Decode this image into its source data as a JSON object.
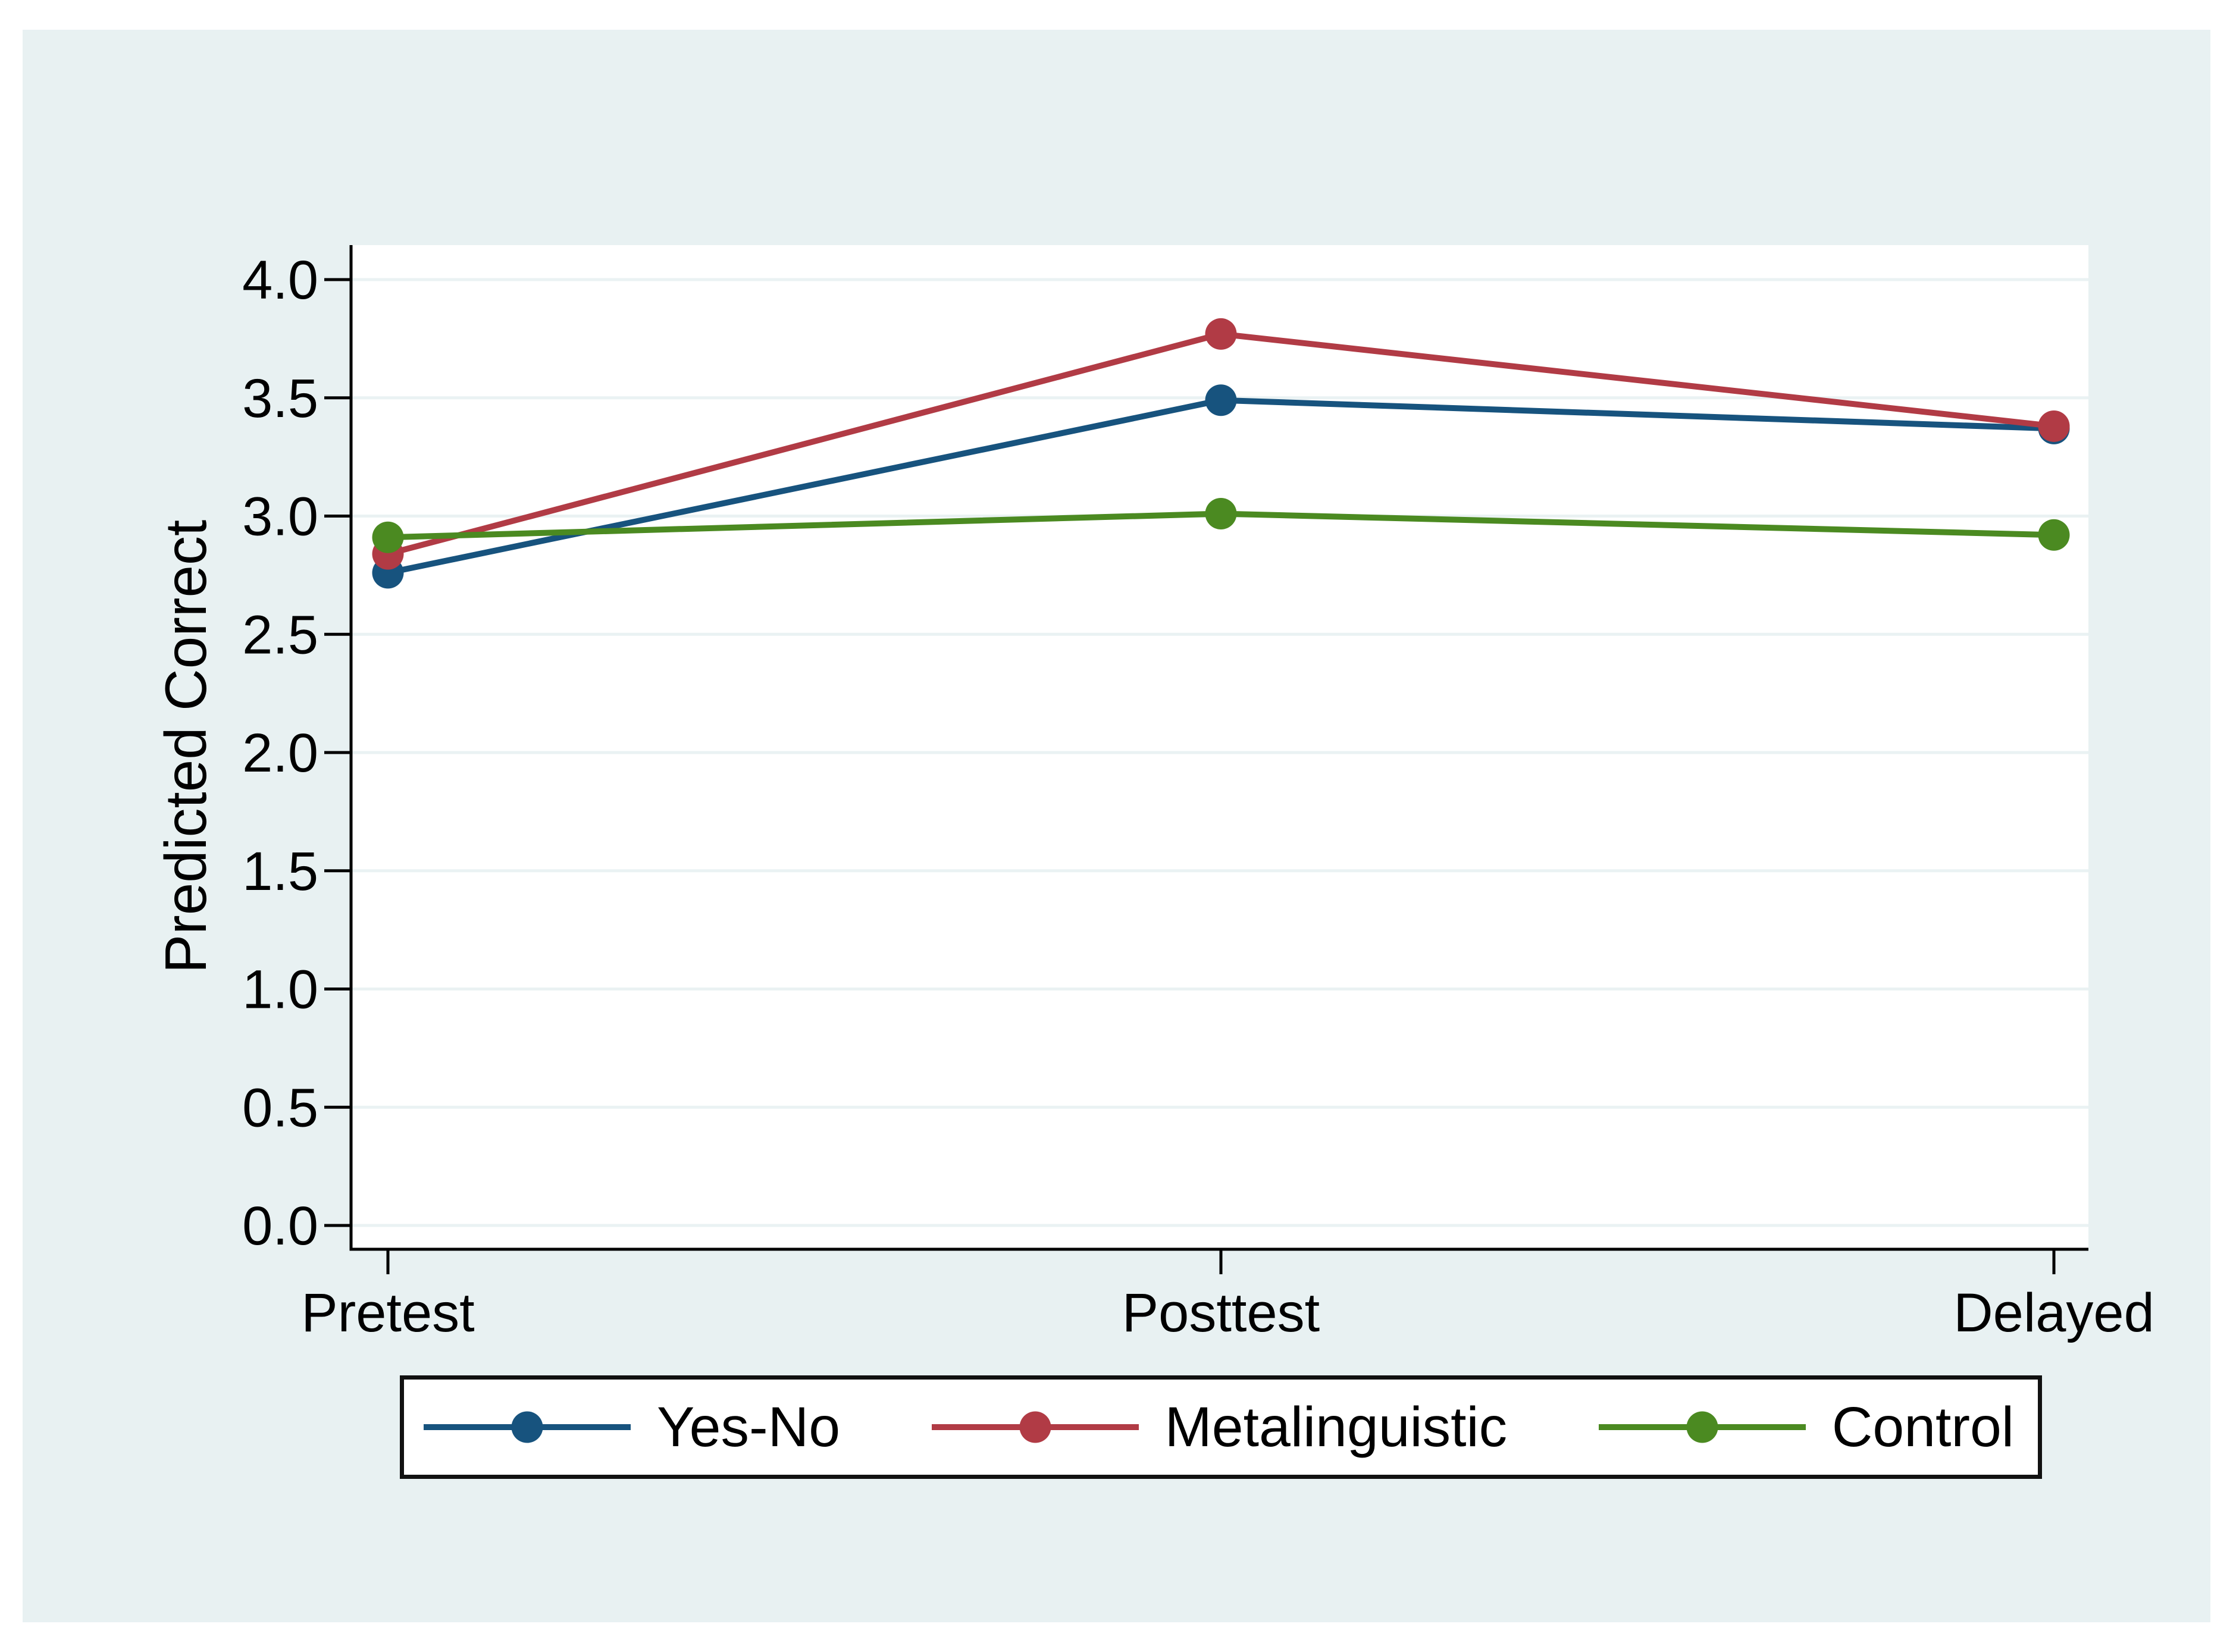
{
  "figure": {
    "page_background": "#ffffff",
    "canvas_background": "#e8f1f2",
    "plot_background": "#ffffff",
    "grid_color": "#eaf2f3",
    "axis_color": "#000000",
    "text_color": "#000000",
    "legend_border_color": "#111111"
  },
  "chart_data": {
    "type": "line",
    "title": "",
    "xlabel": "",
    "ylabel": "Predicted Correct",
    "categories": [
      "Pretest",
      "Posttest",
      "Delayed"
    ],
    "ylim": [
      0.0,
      4.0
    ],
    "ytick_step": 0.5,
    "ytick_labels": [
      "0.0",
      "0.5",
      "1.0",
      "1.5",
      "2.0",
      "2.5",
      "3.0",
      "3.5",
      "4.0"
    ],
    "grid": true,
    "legend_position": "bottom",
    "marker": "circle",
    "series": [
      {
        "name": "Yes-No",
        "color": "#17537E",
        "values": [
          2.76,
          3.49,
          3.37
        ]
      },
      {
        "name": "Metalinguistic",
        "color": "#B13B45",
        "values": [
          2.84,
          3.77,
          3.38
        ]
      },
      {
        "name": "Control",
        "color": "#4B8A21",
        "values": [
          2.91,
          3.01,
          2.92
        ]
      }
    ]
  }
}
